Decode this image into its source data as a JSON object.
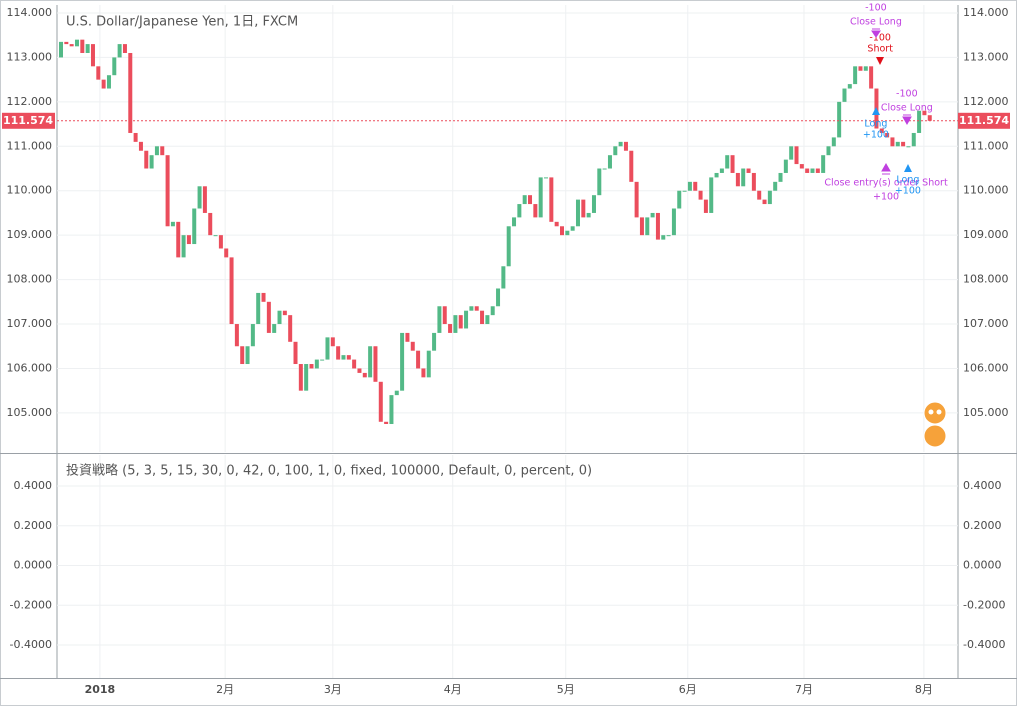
{
  "chart_data": [
    {
      "type": "candlestick",
      "title": "U.S. Dollar/Japanese Yen, 1日, FXCM",
      "up_color": "#53b987",
      "down_color": "#eb4d5c",
      "open": [
        113.0,
        113.35,
        113.3,
        113.25,
        113.4,
        113.1,
        113.3,
        112.8,
        112.5,
        112.3,
        112.6,
        113.0,
        113.3,
        113.1,
        111.3,
        111.1,
        110.9,
        110.5,
        110.8,
        111.0,
        110.8,
        109.2,
        109.3,
        108.5,
        109.0,
        108.8,
        109.6,
        110.1,
        109.5,
        109.0,
        109.0,
        108.7,
        108.5,
        107.0,
        106.5,
        106.1,
        106.5,
        107.0,
        107.7,
        107.5,
        106.8,
        107.0,
        107.3,
        107.2,
        106.6,
        106.1,
        105.5,
        106.1,
        106.0,
        106.2,
        106.2,
        106.7,
        106.5,
        106.2,
        106.3,
        106.2,
        106.0,
        105.9,
        105.8,
        106.5,
        105.7,
        104.8,
        104.75,
        105.4,
        105.5,
        106.8,
        106.6,
        106.4,
        106.0,
        105.8,
        106.4,
        106.8,
        107.4,
        107.0,
        106.8,
        107.2,
        106.9,
        107.3,
        107.4,
        107.3,
        107.0,
        107.2,
        107.4,
        107.8,
        108.3,
        109.2,
        109.4,
        109.7,
        109.9,
        109.7,
        109.4,
        110.3,
        110.3,
        109.3,
        109.2,
        109.0,
        109.1,
        109.2,
        109.8,
        109.4,
        109.5,
        109.9,
        110.5,
        110.5,
        110.8,
        111.0,
        111.1,
        110.9,
        110.2,
        109.4,
        109.0,
        109.4,
        109.5,
        108.9,
        109.0,
        109.0,
        109.6,
        110.0,
        110.0,
        110.2,
        110.0,
        109.8,
        109.5,
        110.3,
        110.4,
        110.5,
        110.8,
        110.4,
        110.1,
        110.5,
        110.4,
        110.0,
        109.8,
        109.7,
        110.0,
        110.2,
        110.4,
        110.7,
        111.0,
        110.6,
        110.5,
        110.4,
        110.5,
        110.4,
        110.8,
        111.0,
        111.2,
        112.0,
        112.3,
        112.4,
        112.8,
        112.7,
        112.8,
        112.3,
        111.4,
        111.3,
        111.2,
        111.0,
        111.1,
        111.0,
        111.0,
        111.3,
        111.8,
        111.7
      ],
      "close": [
        113.35,
        113.3,
        113.25,
        113.4,
        113.1,
        113.3,
        112.8,
        112.5,
        112.3,
        112.6,
        113.0,
        113.3,
        113.1,
        111.3,
        111.1,
        110.9,
        110.5,
        110.8,
        111.0,
        110.8,
        109.2,
        109.3,
        108.5,
        109.0,
        108.8,
        109.6,
        110.1,
        109.5,
        109.0,
        109.0,
        108.7,
        108.5,
        107.0,
        106.5,
        106.1,
        106.5,
        107.0,
        107.7,
        107.5,
        106.8,
        107.0,
        107.3,
        107.2,
        106.6,
        106.1,
        105.5,
        106.1,
        106.0,
        106.2,
        106.2,
        106.7,
        106.5,
        106.2,
        106.3,
        106.2,
        106.0,
        105.9,
        105.8,
        106.5,
        105.7,
        104.8,
        104.75,
        105.4,
        105.5,
        106.8,
        106.6,
        106.4,
        106.0,
        105.8,
        106.4,
        106.8,
        107.4,
        107.0,
        106.8,
        107.2,
        106.9,
        107.3,
        107.4,
        107.3,
        107.0,
        107.2,
        107.4,
        107.8,
        108.3,
        109.2,
        109.4,
        109.7,
        109.9,
        109.7,
        109.4,
        110.3,
        110.3,
        109.3,
        109.2,
        109.0,
        109.1,
        109.2,
        109.8,
        109.4,
        109.5,
        109.9,
        110.5,
        110.5,
        110.8,
        111.0,
        111.1,
        110.9,
        110.2,
        109.4,
        109.0,
        109.4,
        109.5,
        108.9,
        109.0,
        109.0,
        109.6,
        110.0,
        110.0,
        110.2,
        110.0,
        109.8,
        109.5,
        110.3,
        110.4,
        110.5,
        110.8,
        110.4,
        110.1,
        110.5,
        110.4,
        110.0,
        109.8,
        109.7,
        110.0,
        110.2,
        110.4,
        110.7,
        111.0,
        110.6,
        110.5,
        110.4,
        110.5,
        110.4,
        110.8,
        111.0,
        111.2,
        112.0,
        112.3,
        112.4,
        112.8,
        112.7,
        112.8,
        112.3,
        111.4,
        111.3,
        111.2,
        111.0,
        111.1,
        111.0,
        111.0,
        111.3,
        111.8,
        111.7,
        111.574
      ],
      "xlim": [
        -0.75,
        168.3
      ],
      "xticks": [
        {
          "value": 7.3,
          "label": "2018"
        },
        {
          "value": 30.8,
          "label": "2月"
        },
        {
          "value": 51.0,
          "label": "3月"
        },
        {
          "value": 73.5,
          "label": "4月"
        },
        {
          "value": 94.7,
          "label": "5月"
        },
        {
          "value": 117.6,
          "label": "6月"
        },
        {
          "value": 139.4,
          "label": "7月"
        },
        {
          "value": 161.9,
          "label": "8月"
        }
      ],
      "ylim": [
        104.12,
        114.18
      ],
      "yticks": [
        {
          "value": 105,
          "label": "105.000"
        },
        {
          "value": 106,
          "label": "106.000"
        },
        {
          "value": 107,
          "label": "107.000"
        },
        {
          "value": 108,
          "label": "108.000"
        },
        {
          "value": 109,
          "label": "109.000"
        },
        {
          "value": 110,
          "label": "110.000"
        },
        {
          "value": 111,
          "label": "111.000"
        },
        {
          "value": 112,
          "label": "112.000"
        },
        {
          "value": 113,
          "label": "113.000"
        },
        {
          "value": 114,
          "label": "114.000"
        }
      ],
      "grid": true,
      "last_price": 111.574,
      "last_price_color": "#eb4d5c",
      "annotations": [
        {
          "text": "-100",
          "color": "#c040e0",
          "x": 152.9,
          "y": 114.11
        },
        {
          "text": "Close Long",
          "color": "#c040e0",
          "x": 152.9,
          "y": 113.8
        },
        {
          "text": "-100",
          "color": "#e0101a",
          "x": 153.7,
          "y": 113.44
        },
        {
          "text": "Short",
          "color": "#e0101a",
          "x": 153.7,
          "y": 113.19
        },
        {
          "text": "-100",
          "color": "#c040e0",
          "x": 158.7,
          "y": 112.18
        },
        {
          "text": "Close Long",
          "color": "#c040e0",
          "x": 158.7,
          "y": 111.86
        },
        {
          "text": "Long",
          "color": "#2196f3",
          "x": 152.9,
          "y": 111.5
        },
        {
          "text": "+100",
          "color": "#2196f3",
          "x": 152.9,
          "y": 111.25
        },
        {
          "text": "Close entry(s) order Short",
          "color": "#c040e0",
          "x": 154.8,
          "y": 110.17
        },
        {
          "text": "+100",
          "color": "#c040e0",
          "x": 154.8,
          "y": 109.86
        },
        {
          "text": "Long",
          "color": "#2196f3",
          "x": 158.9,
          "y": 110.24
        },
        {
          "text": "+100",
          "color": "#2196f3",
          "x": 158.9,
          "y": 109.99
        }
      ]
    },
    {
      "type": "line",
      "title": "投資戦略 (5, 3, 5, 15, 30, 0, 42, 0, 100, 1, 0, fixed, 100000, Default, 0, percent, 0)",
      "ylim": [
        -0.566,
        0.556
      ],
      "yticks": [
        {
          "value": -0.4,
          "label": "-0.4000"
        },
        {
          "value": -0.2,
          "label": "-0.2000"
        },
        {
          "value": 0,
          "label": "0.0000"
        },
        {
          "value": 0.2,
          "label": "0.2000"
        },
        {
          "value": 0.4,
          "label": "0.4000"
        }
      ],
      "grid": true
    }
  ]
}
